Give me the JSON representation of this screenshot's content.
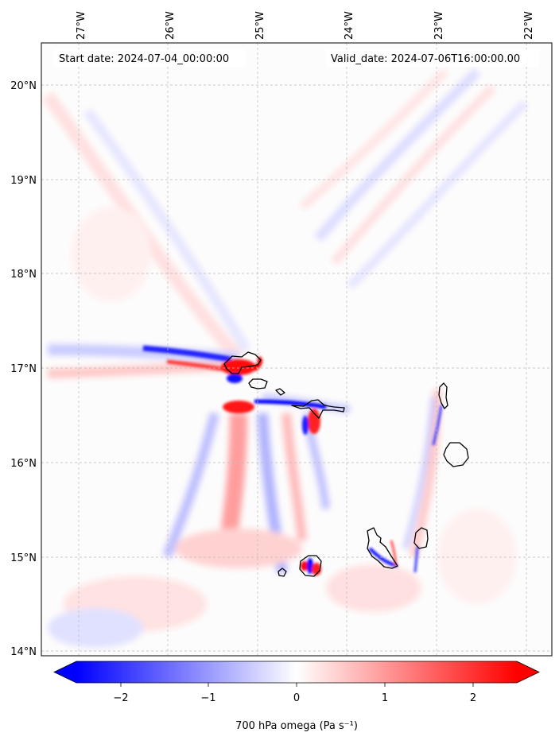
{
  "map": {
    "start_label": "Start date: 2024-07-04_00:00:00",
    "valid_label": "Valid_date: 2024-07-06T16:00:00.00",
    "lon_labels": [
      "27°W",
      "26°W",
      "25°W",
      "24°W",
      "23°W",
      "22°W"
    ],
    "lat_labels": [
      "20°N",
      "19°N",
      "18°N",
      "17°N",
      "16°N",
      "15°N",
      "14°N"
    ],
    "extent": {
      "lon_min": -27.4,
      "lon_max": -21.8,
      "lat_min": 13.95,
      "lat_max": 20.45
    },
    "islands": [
      "Santo Antão",
      "São Vicente",
      "Santa Luzia",
      "São Nicolau",
      "Sal",
      "Boa Vista",
      "Maio",
      "Santiago",
      "Fogo",
      "Brava"
    ]
  },
  "colorbar": {
    "label": "700 hPa omega (Pa s⁻¹)",
    "ticks": [
      "−2",
      "−1",
      "0",
      "1",
      "2"
    ],
    "tick_values": [
      -2,
      -1,
      0,
      1,
      2
    ],
    "vmin": -2.5,
    "vmax": 2.5,
    "low_color": "#0000ff",
    "high_color": "#ff0000",
    "mid_color": "#ffffff"
  },
  "colors": {
    "positive": "#ff0000",
    "negative": "#0000ff",
    "coast": "#000000",
    "grid": "#b0b0b0"
  }
}
